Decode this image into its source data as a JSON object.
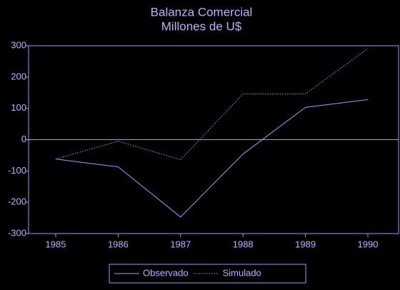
{
  "chart_data": {
    "type": "line",
    "title": "Balanza Comercial",
    "subtitle": "Millones de U$",
    "categories": [
      "1985",
      "1986",
      "1987",
      "1988",
      "1989",
      "1990"
    ],
    "series": [
      {
        "name": "Observado",
        "color": "#9a9aff",
        "style": "solid",
        "values": [
          -62,
          -87,
          -247,
          -46,
          103,
          128
        ]
      },
      {
        "name": "Simulado",
        "color": "#9a9aff",
        "style": "dotted",
        "values": [
          -62,
          -5,
          -64,
          146,
          146,
          291
        ]
      }
    ],
    "ylim": [
      -300,
      300
    ],
    "yticks": [
      -300,
      -200,
      -100,
      0,
      100,
      200,
      300
    ],
    "zero_line": true,
    "legend": "bottom"
  }
}
